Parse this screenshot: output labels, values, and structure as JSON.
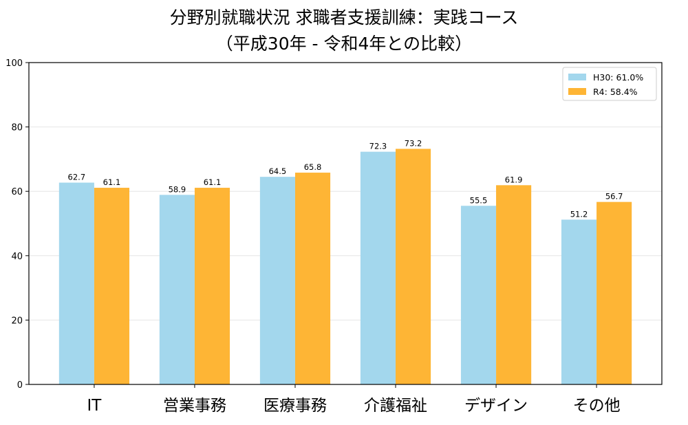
{
  "chart_data": {
    "type": "bar",
    "title": "分野別就職状況  求職者支援訓練：実践コース",
    "subtitle": "（平成30年 - 令和4年との比較）",
    "categories": [
      "IT",
      "営業事務",
      "医療事務",
      "介護福祉",
      "デザイン",
      "その他"
    ],
    "series": [
      {
        "name": "H30: 61.0%",
        "values": [
          62.7,
          58.9,
          64.5,
          72.3,
          55.5,
          51.2
        ],
        "color": "#a3d7ed"
      },
      {
        "name": "R4: 58.4%",
        "values": [
          61.1,
          61.1,
          65.8,
          73.2,
          61.9,
          56.7
        ],
        "color": "#feb535"
      }
    ],
    "ylim": [
      0,
      100
    ],
    "yticks": [
      0,
      20,
      40,
      60,
      80,
      100
    ],
    "grid": true,
    "legend": "top-right",
    "xlabel": "",
    "ylabel": ""
  }
}
